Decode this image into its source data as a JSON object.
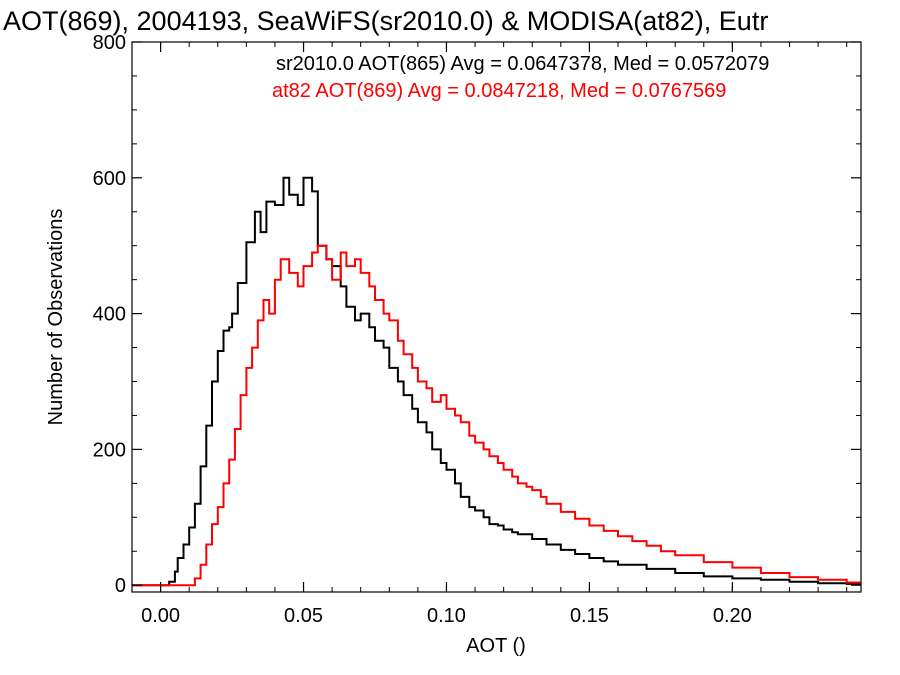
{
  "chart_data": {
    "type": "line",
    "title": "AOT(869), 2004193, SeaWiFS(sr2010.0) & MODISA(at82), Eutr",
    "xlabel": "AOT ()",
    "ylabel": "Number of Observations",
    "xlim": [
      -0.01,
      0.245
    ],
    "ylim": [
      -10,
      800
    ],
    "xticks": [
      0.0,
      0.05,
      0.1,
      0.15,
      0.2
    ],
    "xtick_labels": [
      "0.00",
      "0.05",
      "0.10",
      "0.15",
      "0.20"
    ],
    "yticks": [
      0,
      200,
      400,
      600,
      800
    ],
    "ytick_labels": [
      "0",
      "200",
      "400",
      "600",
      "800"
    ],
    "grid": false,
    "legend_position": "top-right",
    "step": true,
    "series": [
      {
        "name": "sr2010.0 AOT(865) Avg = 0.0647378, Med = 0.0572079",
        "color": "#000000",
        "x": [
          -0.01,
          0.0,
          0.003,
          0.005,
          0.006,
          0.008,
          0.01,
          0.012,
          0.014,
          0.016,
          0.018,
          0.02,
          0.022,
          0.024,
          0.025,
          0.027,
          0.03,
          0.033,
          0.035,
          0.037,
          0.04,
          0.043,
          0.045,
          0.048,
          0.05,
          0.053,
          0.055,
          0.058,
          0.06,
          0.063,
          0.065,
          0.068,
          0.07,
          0.073,
          0.075,
          0.078,
          0.08,
          0.083,
          0.085,
          0.088,
          0.09,
          0.093,
          0.095,
          0.098,
          0.1,
          0.103,
          0.105,
          0.108,
          0.11,
          0.113,
          0.115,
          0.118,
          0.12,
          0.123,
          0.125,
          0.13,
          0.135,
          0.14,
          0.145,
          0.15,
          0.155,
          0.16,
          0.17,
          0.18,
          0.19,
          0.2,
          0.21,
          0.22,
          0.23,
          0.24,
          0.245
        ],
        "values": [
          0,
          0,
          5,
          20,
          40,
          60,
          85,
          120,
          175,
          235,
          300,
          345,
          375,
          380,
          400,
          445,
          505,
          550,
          520,
          565,
          560,
          600,
          575,
          560,
          600,
          580,
          500,
          480,
          470,
          440,
          410,
          390,
          400,
          380,
          360,
          350,
          320,
          300,
          280,
          260,
          240,
          225,
          200,
          180,
          170,
          150,
          130,
          115,
          110,
          100,
          90,
          88,
          82,
          78,
          75,
          68,
          60,
          52,
          46,
          40,
          35,
          30,
          24,
          18,
          13,
          10,
          8,
          5,
          3,
          2,
          1
        ]
      },
      {
        "name": "at82 AOT(869) Avg = 0.0847218, Med = 0.0767569",
        "color": "#ff0000",
        "x": [
          -0.01,
          0.0,
          0.005,
          0.01,
          0.012,
          0.014,
          0.016,
          0.018,
          0.02,
          0.022,
          0.024,
          0.026,
          0.028,
          0.03,
          0.032,
          0.034,
          0.036,
          0.038,
          0.04,
          0.042,
          0.045,
          0.048,
          0.05,
          0.053,
          0.055,
          0.058,
          0.06,
          0.063,
          0.065,
          0.068,
          0.07,
          0.073,
          0.075,
          0.078,
          0.08,
          0.083,
          0.085,
          0.088,
          0.09,
          0.093,
          0.095,
          0.098,
          0.1,
          0.103,
          0.105,
          0.108,
          0.11,
          0.113,
          0.115,
          0.118,
          0.12,
          0.123,
          0.125,
          0.128,
          0.13,
          0.133,
          0.135,
          0.14,
          0.145,
          0.15,
          0.155,
          0.16,
          0.165,
          0.17,
          0.175,
          0.18,
          0.19,
          0.2,
          0.21,
          0.22,
          0.23,
          0.24,
          0.245
        ],
        "values": [
          0,
          0,
          0,
          0,
          10,
          30,
          60,
          90,
          115,
          150,
          185,
          230,
          280,
          320,
          350,
          390,
          420,
          400,
          450,
          480,
          460,
          440,
          470,
          490,
          500,
          480,
          450,
          490,
          470,
          480,
          460,
          440,
          420,
          400,
          390,
          360,
          340,
          320,
          300,
          290,
          270,
          280,
          260,
          250,
          240,
          220,
          210,
          200,
          190,
          180,
          170,
          160,
          150,
          145,
          140,
          130,
          120,
          108,
          98,
          88,
          80,
          72,
          65,
          58,
          50,
          44,
          34,
          26,
          18,
          12,
          8,
          4,
          2
        ]
      }
    ]
  }
}
